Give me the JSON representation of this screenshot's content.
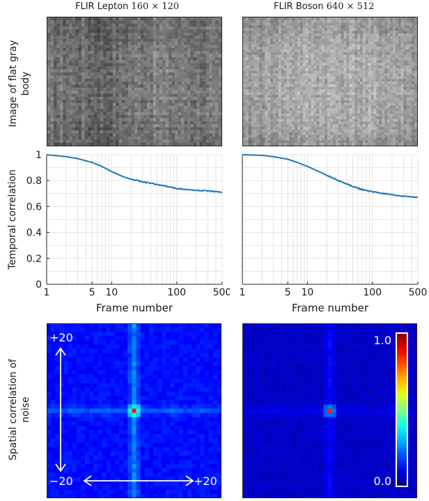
{
  "columns": [
    {
      "camera": "FLIR Lepton",
      "resolution": "160 × 120"
    },
    {
      "camera": "FLIR Boson",
      "resolution": "640 × 512"
    }
  ],
  "row_labels": {
    "image": [
      "Image of flat gray",
      "body"
    ],
    "temporal": "Temporal correlation",
    "spatial": [
      "Spatial correlation of",
      "noise"
    ]
  },
  "chart_data": [
    {
      "type": "line",
      "panel": "FLIR Lepton",
      "ylabel": "Temporal correlation",
      "xlabel": "Frame number",
      "x_scale": "log",
      "xlim": [
        1,
        500
      ],
      "ylim": [
        0,
        1
      ],
      "x_ticks": [
        "1",
        "5",
        "10",
        "100",
        "500"
      ],
      "y_ticks": [
        "0",
        "0.2",
        "0.4",
        "0.6",
        "0.8",
        "1"
      ],
      "grid": true,
      "color": "#1f77b4",
      "x": [
        1,
        2,
        3,
        5,
        7,
        10,
        15,
        20,
        30,
        50,
        70,
        100,
        150,
        200,
        300,
        500
      ],
      "y": [
        1.0,
        0.985,
        0.97,
        0.94,
        0.91,
        0.87,
        0.83,
        0.81,
        0.79,
        0.77,
        0.755,
        0.74,
        0.73,
        0.725,
        0.72,
        0.71
      ]
    },
    {
      "type": "line",
      "panel": "FLIR Boson",
      "xlabel": "Frame number",
      "x_scale": "log",
      "xlim": [
        1,
        500
      ],
      "ylim": [
        0,
        1
      ],
      "x_ticks": [
        "1",
        "5",
        "10",
        "100",
        "500"
      ],
      "grid": true,
      "color": "#1f77b4",
      "x": [
        1,
        2,
        3,
        5,
        7,
        10,
        15,
        20,
        30,
        50,
        70,
        100,
        150,
        200,
        300,
        500
      ],
      "y": [
        1.0,
        0.995,
        0.985,
        0.965,
        0.94,
        0.91,
        0.87,
        0.84,
        0.8,
        0.755,
        0.73,
        0.715,
        0.7,
        0.69,
        0.68,
        0.67
      ]
    },
    {
      "type": "heatmap",
      "panel": "FLIR Lepton",
      "colormap": "jet",
      "colorbar_range": [
        0.0,
        1.0
      ],
      "annotations": [
        "+20",
        "−20",
        "+20"
      ],
      "center_value": 1.0
    },
    {
      "type": "heatmap",
      "panel": "FLIR Boson",
      "colormap": "jet",
      "colorbar_ticks": [
        "1.0",
        "0.0"
      ],
      "center_value": 1.0
    }
  ]
}
